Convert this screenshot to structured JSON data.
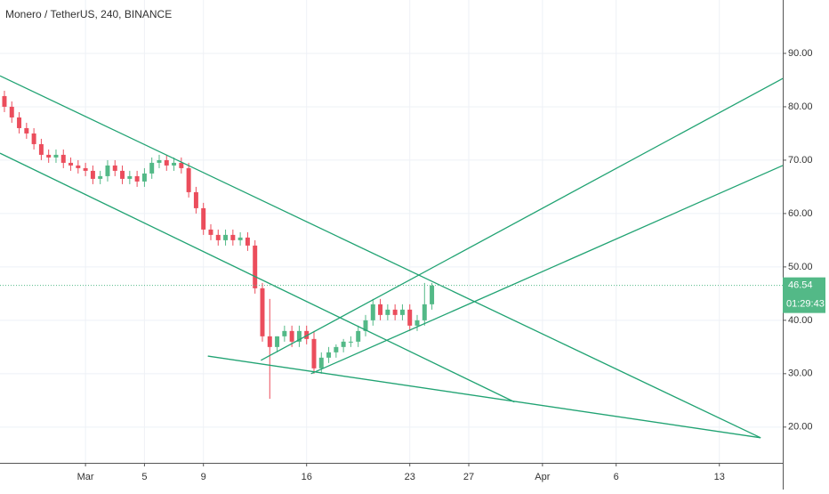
{
  "chart_data": {
    "type": "candlestick",
    "title": "Monero / TetherUS, 240, BINANCE",
    "up_color": "#53b987",
    "down_color": "#eb4d5c",
    "line_color": "#21a373",
    "xlim": [
      -5.8,
      47.3
    ],
    "ylim": [
      13.3,
      100
    ],
    "xticks": [
      {
        "value": 0,
        "label": "Mar"
      },
      {
        "value": 4,
        "label": "5"
      },
      {
        "value": 8,
        "label": "9"
      },
      {
        "value": 15,
        "label": "16"
      },
      {
        "value": 22,
        "label": "23"
      },
      {
        "value": 26,
        "label": "27"
      },
      {
        "value": 31,
        "label": "Apr"
      },
      {
        "value": 36,
        "label": "6"
      },
      {
        "value": 43,
        "label": "13"
      }
    ],
    "yticks": [
      {
        "value": 20,
        "label": "20.00"
      },
      {
        "value": 30,
        "label": "30.00"
      },
      {
        "value": 40,
        "label": "40.00"
      },
      {
        "value": 50,
        "label": "50.00"
      },
      {
        "value": 60,
        "label": "60.00"
      },
      {
        "value": 70,
        "label": "70.00"
      },
      {
        "value": 80,
        "label": "80.00"
      },
      {
        "value": 90,
        "label": "90.00"
      }
    ],
    "grid": true,
    "x": [
      -5.5,
      -5,
      -4.5,
      -4,
      -3.5,
      -3,
      -2.5,
      -2,
      -1.5,
      -1,
      -0.5,
      0,
      0.5,
      1,
      1.5,
      2,
      2.5,
      3,
      3.5,
      4,
      4.5,
      5,
      5.5,
      6,
      6.5,
      7,
      7.5,
      8,
      8.5,
      9,
      9.5,
      10,
      10.5,
      11,
      11.5,
      12,
      12.5,
      13,
      13.5,
      14,
      14.5,
      15,
      15.5,
      16,
      16.5,
      17,
      17.5,
      18,
      18.5,
      19,
      19.5,
      20,
      20.5,
      21,
      21.5,
      22,
      22.5,
      23,
      23.5
    ],
    "open": [
      82,
      80,
      78,
      76,
      75,
      73,
      71,
      70.5,
      71,
      69.5,
      69,
      68.5,
      68,
      66.5,
      67,
      69,
      68,
      66.5,
      67,
      66,
      67.5,
      69.5,
      70,
      69,
      69.5,
      68.5,
      64,
      61,
      57,
      56,
      55,
      56,
      55,
      55.5,
      54,
      46,
      37,
      35,
      37,
      38,
      36,
      38,
      36.5,
      31,
      33,
      34,
      35,
      36,
      36,
      38,
      40,
      43,
      41,
      42,
      41,
      42,
      39,
      40,
      43
    ],
    "high": [
      83,
      81,
      79,
      77,
      76,
      74,
      72,
      72,
      72,
      70.5,
      70,
      69.5,
      69,
      68,
      70,
      70,
      69,
      68,
      68,
      68.5,
      70.5,
      71,
      71,
      70.5,
      70.5,
      69.5,
      65,
      62,
      58,
      57,
      57,
      57,
      56.5,
      56.5,
      55,
      47,
      44,
      37,
      39,
      39,
      39,
      39,
      38,
      34,
      35,
      35.5,
      36.5,
      37,
      39,
      41,
      44,
      44,
      43,
      43,
      43,
      43,
      41,
      47,
      47
    ],
    "low": [
      79,
      77,
      75,
      74,
      72,
      70,
      69.5,
      69.5,
      68.5,
      68,
      67.5,
      67,
      65.5,
      65.5,
      66,
      67,
      65.5,
      65.5,
      65,
      65,
      66.5,
      68.5,
      68,
      68,
      67.5,
      63,
      60,
      56,
      55,
      54,
      54,
      54,
      54,
      53,
      45,
      36,
      25.3,
      34,
      36,
      35,
      35,
      35.5,
      30,
      30,
      32,
      33,
      34,
      35,
      35,
      37,
      39,
      40,
      40,
      40,
      40,
      38,
      38,
      39,
      42
    ],
    "close": [
      80,
      78,
      76,
      75,
      73,
      71,
      70.5,
      71,
      69.5,
      69,
      68.5,
      68,
      66.5,
      67,
      69,
      68,
      66.5,
      67,
      66,
      67.5,
      69.5,
      70,
      69,
      69.5,
      68.5,
      64,
      61,
      57,
      56,
      55,
      56,
      55,
      55.5,
      54,
      46,
      37,
      35,
      37,
      38,
      36,
      38,
      36.5,
      31,
      33,
      34,
      35,
      36,
      36,
      38,
      40,
      43,
      41,
      42,
      41,
      42,
      39,
      40,
      43,
      46.5
    ],
    "trend_lines": [
      {
        "x": [
          -5.8,
          45.8
        ],
        "y": [
          85.8,
          18
        ]
      },
      {
        "x": [
          -5.8,
          29.1
        ],
        "y": [
          71.3,
          24.7
        ]
      },
      {
        "x": [
          8.3,
          45.8
        ],
        "y": [
          33.3,
          18
        ]
      },
      {
        "x": [
          11.9,
          47.3
        ],
        "y": [
          32.5,
          85.3
        ]
      },
      {
        "x": [
          15.3,
          47.3
        ],
        "y": [
          30,
          69
        ]
      }
    ],
    "last_price": {
      "value": 46.54,
      "label": "46.54"
    },
    "countdown": "01:29:43"
  }
}
